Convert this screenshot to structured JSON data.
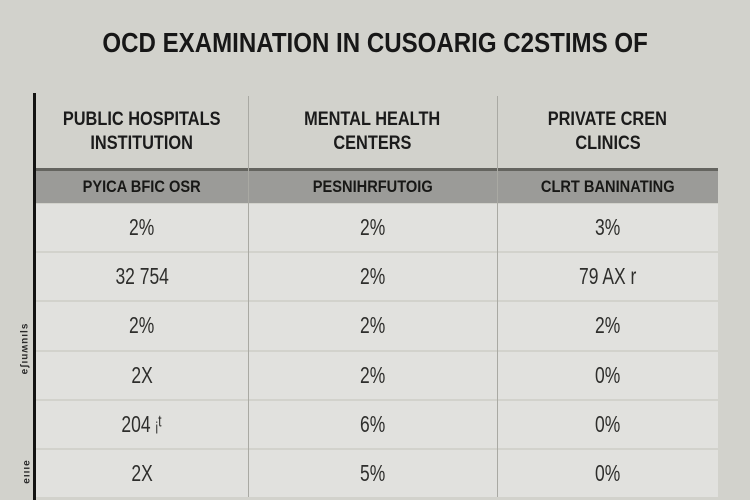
{
  "page": {
    "title": "OCD EXAMINATION IN CUSOARIG C2STIMS OF",
    "colors": {
      "background": "#d2d2cc",
      "row_background": "#e1e1de",
      "subheader_band": "#9b9b98",
      "rule": "#131312",
      "text": "#1b1b1b"
    }
  },
  "table": {
    "headers": [
      {
        "line1": "PUBLIC HOSPITALS",
        "line2": "INSTITUTION"
      },
      {
        "line1": "MENTAL HEALTH",
        "line2": "CENTERS"
      },
      {
        "line1": "PRIVATE CREN",
        "line2": "CLINICS"
      }
    ],
    "subheaders": [
      "PYICA BFIC OSR",
      "PESNIHRFUTOIG",
      "CLRT BANINATING"
    ],
    "rows": [
      [
        "2%",
        "2%",
        "3%"
      ],
      [
        "32 754",
        "2%",
        "79 AX r"
      ],
      [
        "2%",
        "2%",
        "2%"
      ],
      [
        "2X",
        "2%",
        "0%"
      ],
      [
        "204 ᵢᵗ",
        "6%",
        "0%"
      ],
      [
        "2X",
        "5%",
        "0%"
      ]
    ]
  },
  "side_labels": {
    "upper": "eʃıuʍnıls",
    "lower": "eıııe"
  },
  "chart_data": {
    "type": "table",
    "title": "OCD EXAMINATION IN CUSOARIG C2STIMS OF",
    "columns": [
      "PUBLIC HOSPITALS INSTITUTION",
      "MENTAL HEALTH CENTERS",
      "PRIVATE CREN CLINICS"
    ],
    "subheader_row": [
      "PYICA BFIC OSR",
      "PESNIHRFUTOIG",
      "CLRT BANINATING"
    ],
    "rows": [
      [
        "2%",
        "2%",
        "3%"
      ],
      [
        "32 754",
        "2%",
        "79 AX r"
      ],
      [
        "2%",
        "2%",
        "2%"
      ],
      [
        "2X",
        "2%",
        "0%"
      ],
      [
        "204 it",
        "6%",
        "0%"
      ],
      [
        "2X",
        "5%",
        "0%"
      ]
    ],
    "layout": "three-column statistics table with gray subheader band, heavy left rule, light column dividers"
  }
}
